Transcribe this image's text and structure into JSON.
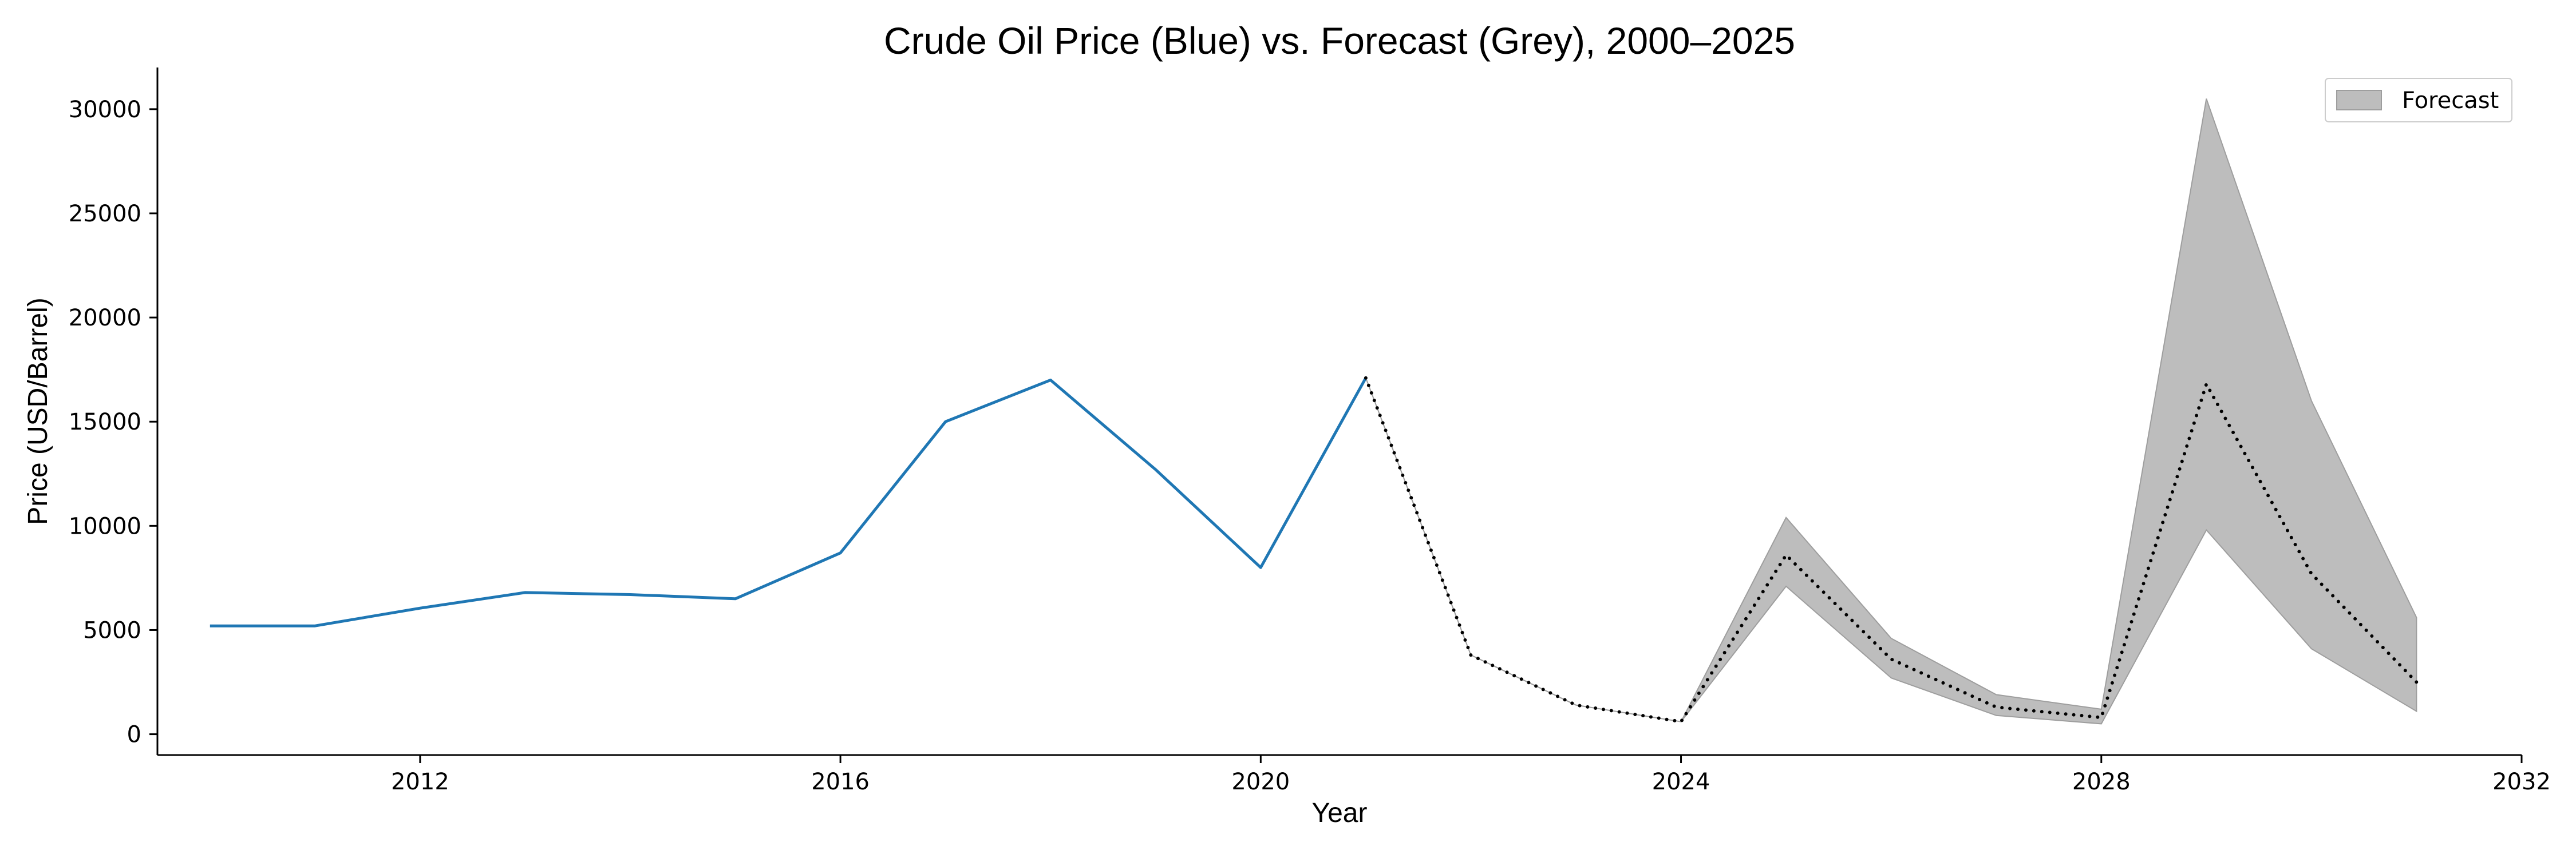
{
  "chart_data": {
    "type": "line",
    "title": "Crude Oil Price (Blue) vs. Forecast (Grey), 2000–2025",
    "xlabel": "Year",
    "ylabel": "Price (USD/Barrel)",
    "xlim": [
      2009.5,
      2032
    ],
    "ylim": [
      -1000,
      32000
    ],
    "x_ticks": [
      2012,
      2016,
      2020,
      2024,
      2028,
      2032
    ],
    "y_ticks": [
      0,
      5000,
      10000,
      15000,
      20000,
      25000,
      30000
    ],
    "grid": false,
    "legend_position": "top-right",
    "colors": {
      "actual": "#1f77b4",
      "forecast_line": "#000000",
      "forecast_band": "#bdbdbd",
      "forecast_band_edge": "#9e9e9e"
    },
    "series": [
      {
        "style": "solid",
        "x": [
          2010,
          2011,
          2012,
          2013,
          2014,
          2015,
          2016,
          2017,
          2018,
          2019,
          2020,
          2021
        ],
        "y": [
          5200,
          5200,
          6050,
          6800,
          6700,
          6500,
          8700,
          15000,
          17000,
          12700,
          8000,
          17100
        ]
      },
      {
        "style": "dotted",
        "x": [
          2021,
          2022,
          2023,
          2024,
          2025,
          2026,
          2027,
          2028,
          2029,
          2030,
          2031
        ],
        "y": [
          17100,
          3800,
          1400,
          600,
          8600,
          3600,
          1300,
          800,
          16800,
          7700,
          2500
        ]
      }
    ],
    "forecast_band": {
      "name": "Forecast",
      "x": [
        2021,
        2022,
        2023,
        2024,
        2025,
        2026,
        2027,
        2028,
        2029,
        2030,
        2031
      ],
      "lower": [
        17100,
        3800,
        1400,
        600,
        7100,
        2700,
        900,
        500,
        9800,
        4100,
        1100
      ],
      "upper": [
        17100,
        3800,
        1400,
        600,
        10400,
        4600,
        1900,
        1200,
        30500,
        16000,
        5600
      ]
    }
  }
}
